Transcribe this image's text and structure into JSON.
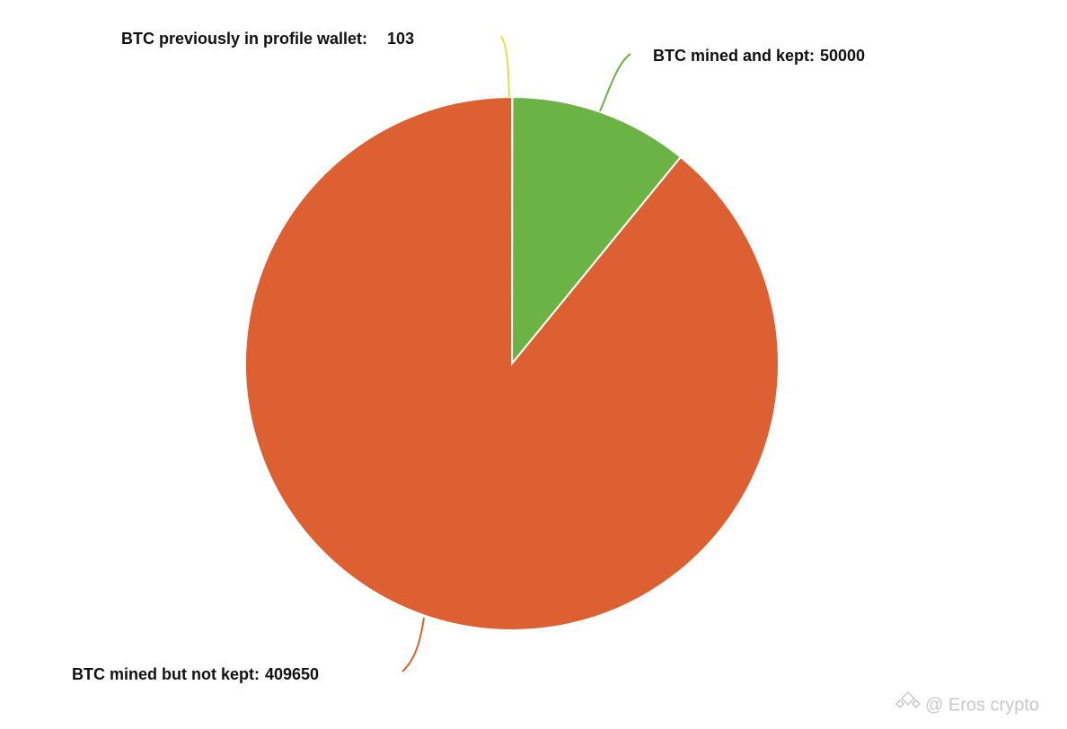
{
  "chart_data": {
    "type": "pie",
    "categories": [
      "BTC previously in profile wallet:",
      "BTC mined and kept:",
      "BTC mined but not kept:"
    ],
    "values": [
      103,
      50000,
      409650
    ],
    "colors": [
      "#e2df4c",
      "#6cb346",
      "#dc6031"
    ],
    "start_angle": 0,
    "direction": "clockwise"
  },
  "watermark": "@ Eros crypto"
}
